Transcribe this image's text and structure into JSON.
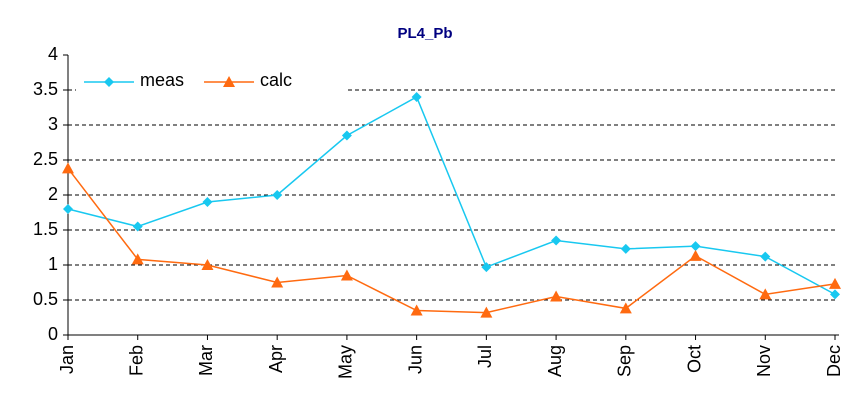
{
  "chart_data": {
    "type": "line",
    "title": "PL4_Pb",
    "categories": [
      "Jan",
      "Feb",
      "Mar",
      "Apr",
      "May",
      "Jun",
      "Jul",
      "Aug",
      "Sep",
      "Oct",
      "Nov",
      "Dec"
    ],
    "series": [
      {
        "name": "meas",
        "color": "#18c8f0",
        "marker": "diamond",
        "values": [
          1.8,
          1.55,
          1.9,
          2.0,
          2.85,
          3.4,
          0.97,
          1.35,
          1.23,
          1.27,
          1.12,
          0.58
        ]
      },
      {
        "name": "calc",
        "color": "#ff6a10",
        "marker": "triangle",
        "values": [
          2.38,
          1.08,
          1.0,
          0.75,
          0.85,
          0.35,
          0.32,
          0.55,
          0.38,
          1.13,
          0.58,
          0.73
        ]
      }
    ],
    "ylim": [
      0,
      4
    ],
    "yticks": [
      0,
      0.5,
      1,
      1.5,
      2,
      2.5,
      3,
      3.5,
      4
    ],
    "grid": true,
    "legend": "upper-left"
  }
}
